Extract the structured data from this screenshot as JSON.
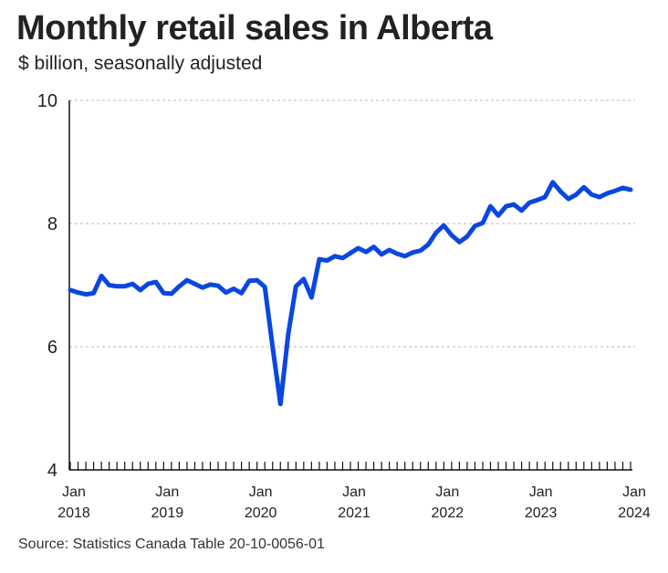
{
  "title": "Monthly retail sales in Alberta",
  "subtitle": "$ billion, seasonally adjusted",
  "source": "Source: Statistics Canada Table 20-10-0056-01",
  "colors": {
    "line": "#0a47e0",
    "grid": "#b9b9b9",
    "axis": "#111111"
  },
  "chart_data": {
    "type": "line",
    "title": "Monthly retail sales in Alberta",
    "subtitle": "$ billion, seasonally adjusted",
    "xlabel": "",
    "ylabel": "$ billion",
    "ylim": [
      4,
      10
    ],
    "yticks": [
      4,
      6,
      8,
      10
    ],
    "grid": "horizontal dotted",
    "legend": "none",
    "x_tick_labels": [
      {
        "month": "Jan",
        "year": "2018"
      },
      {
        "month": "Jan",
        "year": "2019"
      },
      {
        "month": "Jan",
        "year": "2020"
      },
      {
        "month": "Jan",
        "year": "2021"
      },
      {
        "month": "Jan",
        "year": "2022"
      },
      {
        "month": "Jan",
        "year": "2023"
      },
      {
        "month": "Jan",
        "year": "2024"
      }
    ],
    "x_start": "2018-01",
    "x_end": "2024-01",
    "series": [
      {
        "name": "Retail sales",
        "values": [
          6.92,
          6.88,
          6.85,
          6.87,
          7.15,
          7.0,
          6.98,
          6.98,
          7.02,
          6.92,
          7.02,
          7.05,
          6.87,
          6.86,
          6.98,
          7.08,
          7.02,
          6.96,
          7.01,
          6.99,
          6.88,
          6.94,
          6.87,
          7.07,
          7.08,
          6.97,
          6.0,
          5.07,
          6.2,
          6.98,
          7.1,
          6.8,
          7.42,
          7.4,
          7.47,
          7.44,
          7.52,
          7.6,
          7.54,
          7.62,
          7.5,
          7.57,
          7.51,
          7.47,
          7.53,
          7.56,
          7.66,
          7.85,
          7.97,
          7.81,
          7.7,
          7.79,
          7.96,
          8.01,
          8.28,
          8.13,
          8.28,
          8.31,
          8.21,
          8.34,
          8.38,
          8.43,
          8.67,
          8.52,
          8.4,
          8.47,
          8.59,
          8.47,
          8.43,
          8.49,
          8.53,
          8.58,
          8.55
        ]
      }
    ]
  }
}
